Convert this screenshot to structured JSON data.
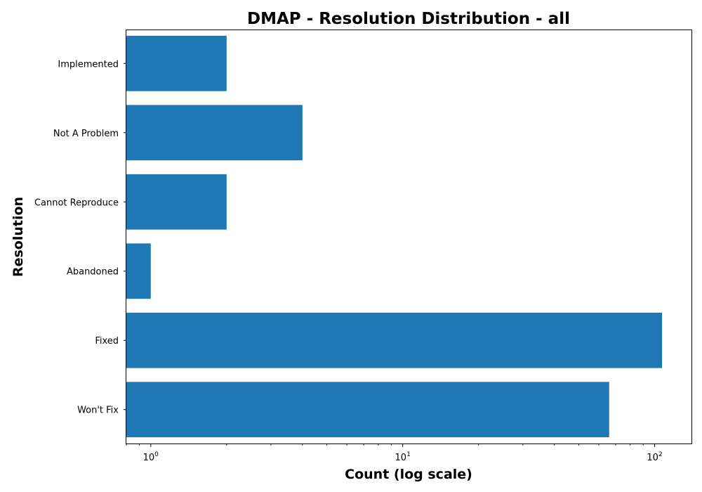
{
  "chart_data": {
    "type": "bar",
    "orientation": "horizontal",
    "title": "DMAP - Resolution Distribution - all",
    "xlabel": "Count (log scale)",
    "ylabel": "Resolution",
    "xscale": "log",
    "xlim": [
      0.8,
      140
    ],
    "x_ticks": [
      {
        "value": 1,
        "base": "10",
        "exp": "0"
      },
      {
        "value": 10,
        "base": "10",
        "exp": "1"
      },
      {
        "value": 100,
        "base": "10",
        "exp": "2"
      }
    ],
    "categories": [
      "Won't Fix",
      "Fixed",
      "Abandoned",
      "Cannot Reproduce",
      "Not A Problem",
      "Implemented"
    ],
    "values": [
      66,
      107,
      1,
      2,
      4,
      2
    ],
    "bar_color": "#1f77b4",
    "grid": false
  }
}
